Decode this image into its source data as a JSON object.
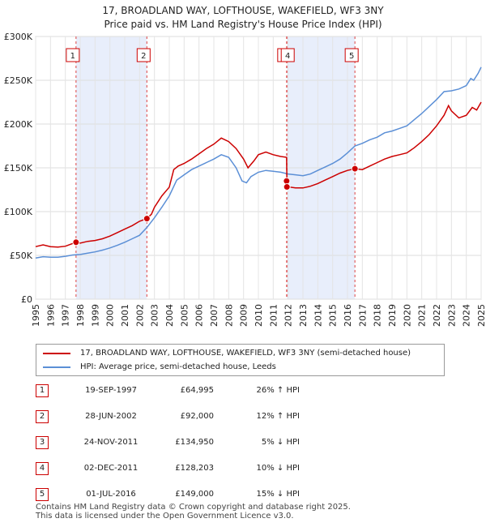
{
  "title": {
    "line1": "17, BROADLAND WAY, LOFTHOUSE, WAKEFIELD, WF3 3NY",
    "line2": "Price paid vs. HM Land Registry's House Price Index (HPI)"
  },
  "colors": {
    "property": "#cc0000",
    "hpi": "#5b8fd6",
    "shade": "#e8eefb"
  },
  "chart_data": {
    "type": "line",
    "ylim": [
      0,
      300000
    ],
    "xlim": [
      1995,
      2025
    ],
    "y_ticks": [
      {
        "value": 0,
        "label": "£0"
      },
      {
        "value": 50000,
        "label": "£50K"
      },
      {
        "value": 100000,
        "label": "£100K"
      },
      {
        "value": 150000,
        "label": "£150K"
      },
      {
        "value": 200000,
        "label": "£200K"
      },
      {
        "value": 250000,
        "label": "£250K"
      },
      {
        "value": 300000,
        "label": "£300K"
      }
    ],
    "x_ticks": [
      "1995",
      "1996",
      "1997",
      "1998",
      "1999",
      "2000",
      "2001",
      "2002",
      "2003",
      "2004",
      "2005",
      "2006",
      "2007",
      "2008",
      "2009",
      "2010",
      "2011",
      "2012",
      "2013",
      "2014",
      "2015",
      "2016",
      "2017",
      "2018",
      "2019",
      "2020",
      "2021",
      "2022",
      "2023",
      "2024",
      "2025"
    ],
    "grid": true,
    "shaded_spans": [
      [
        1997.72,
        2002.49
      ],
      [
        2011.92,
        2016.5
      ]
    ],
    "series": [
      {
        "name": "17, BROADLAND WAY, LOFTHOUSE, WAKEFIELD, WF3 3NY (semi-detached house)",
        "color": "#cc0000",
        "points": [
          [
            1995,
            60000
          ],
          [
            1995.5,
            62000
          ],
          [
            1996,
            60000
          ],
          [
            1996.5,
            59500
          ],
          [
            1997,
            60500
          ],
          [
            1997.72,
            64995
          ],
          [
            1998,
            64000
          ],
          [
            1998.5,
            66000
          ],
          [
            1999,
            67000
          ],
          [
            1999.5,
            69000
          ],
          [
            2000,
            72000
          ],
          [
            2000.5,
            76000
          ],
          [
            2001,
            80000
          ],
          [
            2001.5,
            84000
          ],
          [
            2002,
            89000
          ],
          [
            2002.49,
            92000
          ],
          [
            2002.8,
            97000
          ],
          [
            2003,
            105000
          ],
          [
            2003.5,
            118000
          ],
          [
            2004,
            128000
          ],
          [
            2004.3,
            148000
          ],
          [
            2004.6,
            152000
          ],
          [
            2005,
            155000
          ],
          [
            2005.5,
            160000
          ],
          [
            2006,
            166000
          ],
          [
            2006.5,
            172000
          ],
          [
            2007,
            177000
          ],
          [
            2007.5,
            184000
          ],
          [
            2008,
            180000
          ],
          [
            2008.5,
            172000
          ],
          [
            2009,
            160000
          ],
          [
            2009.3,
            150000
          ],
          [
            2009.7,
            158000
          ],
          [
            2010,
            165000
          ],
          [
            2010.5,
            168000
          ],
          [
            2011,
            165000
          ],
          [
            2011.5,
            163000
          ],
          [
            2011.9,
            162000
          ],
          [
            2011.92,
            134950
          ],
          [
            2012.0,
            128203
          ],
          [
            2012.5,
            127000
          ],
          [
            2013,
            127000
          ],
          [
            2013.5,
            129000
          ],
          [
            2014,
            132000
          ],
          [
            2014.5,
            136000
          ],
          [
            2015,
            140000
          ],
          [
            2015.5,
            144000
          ],
          [
            2016,
            147000
          ],
          [
            2016.5,
            149000
          ],
          [
            2017,
            148000
          ],
          [
            2017.5,
            152000
          ],
          [
            2018,
            156000
          ],
          [
            2018.5,
            160000
          ],
          [
            2019,
            163000
          ],
          [
            2019.5,
            165000
          ],
          [
            2020,
            167000
          ],
          [
            2020.5,
            173000
          ],
          [
            2021,
            180000
          ],
          [
            2021.5,
            188000
          ],
          [
            2022,
            198000
          ],
          [
            2022.5,
            210000
          ],
          [
            2022.8,
            221000
          ],
          [
            2023,
            215000
          ],
          [
            2023.5,
            207000
          ],
          [
            2024,
            210000
          ],
          [
            2024.4,
            219000
          ],
          [
            2024.7,
            216000
          ],
          [
            2025,
            225000
          ]
        ]
      },
      {
        "name": "HPI: Average price, semi-detached house, Leeds",
        "color": "#5b8fd6",
        "points": [
          [
            1995,
            47000
          ],
          [
            1995.5,
            48500
          ],
          [
            1996,
            48000
          ],
          [
            1996.5,
            48000
          ],
          [
            1997,
            49000
          ],
          [
            1997.5,
            50500
          ],
          [
            1998,
            51000
          ],
          [
            1998.5,
            52500
          ],
          [
            1999,
            54000
          ],
          [
            1999.5,
            56000
          ],
          [
            2000,
            58500
          ],
          [
            2000.5,
            61500
          ],
          [
            2001,
            65000
          ],
          [
            2001.5,
            69000
          ],
          [
            2002,
            73000
          ],
          [
            2002.5,
            82000
          ],
          [
            2003,
            93000
          ],
          [
            2003.5,
            105000
          ],
          [
            2004,
            118000
          ],
          [
            2004.5,
            136000
          ],
          [
            2005,
            142000
          ],
          [
            2005.5,
            148000
          ],
          [
            2006,
            152000
          ],
          [
            2006.5,
            156000
          ],
          [
            2007,
            160000
          ],
          [
            2007.5,
            165000
          ],
          [
            2008,
            162000
          ],
          [
            2008.5,
            150000
          ],
          [
            2008.9,
            135000
          ],
          [
            2009.2,
            133000
          ],
          [
            2009.5,
            140000
          ],
          [
            2010,
            145000
          ],
          [
            2010.5,
            147000
          ],
          [
            2011,
            146000
          ],
          [
            2011.5,
            145000
          ],
          [
            2012,
            143000
          ],
          [
            2012.5,
            142000
          ],
          [
            2013,
            141000
          ],
          [
            2013.5,
            143000
          ],
          [
            2014,
            147000
          ],
          [
            2014.5,
            151000
          ],
          [
            2015,
            155000
          ],
          [
            2015.5,
            160000
          ],
          [
            2016,
            167000
          ],
          [
            2016.5,
            175000
          ],
          [
            2017,
            178000
          ],
          [
            2017.5,
            182000
          ],
          [
            2018,
            185000
          ],
          [
            2018.5,
            190000
          ],
          [
            2019,
            192000
          ],
          [
            2019.5,
            195000
          ],
          [
            2020,
            198000
          ],
          [
            2020.5,
            205000
          ],
          [
            2021,
            212000
          ],
          [
            2021.5,
            220000
          ],
          [
            2022,
            228000
          ],
          [
            2022.5,
            237000
          ],
          [
            2023,
            238000
          ],
          [
            2023.5,
            240000
          ],
          [
            2024,
            244000
          ],
          [
            2024.3,
            252000
          ],
          [
            2024.5,
            250000
          ],
          [
            2024.8,
            258000
          ],
          [
            2025,
            265000
          ]
        ]
      }
    ],
    "sale_markers": [
      {
        "x": 1997.72,
        "y": 64995,
        "label": "1"
      },
      {
        "x": 2002.49,
        "y": 92000,
        "label": "2"
      },
      {
        "x": 2011.9,
        "y": 134950,
        "label": "3"
      },
      {
        "x": 2011.92,
        "y": 128203,
        "label": "4"
      },
      {
        "x": 2016.5,
        "y": 149000,
        "label": "5"
      }
    ],
    "marker_boxes": [
      {
        "x": 1997.72,
        "label": "1"
      },
      {
        "x": 2002.49,
        "label": "2"
      },
      {
        "x": 2011.9,
        "label": "3"
      },
      {
        "x": 2011.92,
        "label": "4"
      },
      {
        "x": 2016.5,
        "label": "5"
      }
    ]
  },
  "legend": {
    "items": [
      {
        "label": "17, BROADLAND WAY, LOFTHOUSE, WAKEFIELD, WF3 3NY (semi-detached house)",
        "color": "#cc0000"
      },
      {
        "label": "HPI: Average price, semi-detached house, Leeds",
        "color": "#5b8fd6"
      }
    ]
  },
  "sales": [
    {
      "num": "1",
      "date": "19-SEP-1997",
      "price": "£64,995",
      "hpi": "26% ↑ HPI"
    },
    {
      "num": "2",
      "date": "28-JUN-2002",
      "price": "£92,000",
      "hpi": "12% ↑ HPI"
    },
    {
      "num": "3",
      "date": "24-NOV-2011",
      "price": "£134,950",
      "hpi": "5% ↓ HPI"
    },
    {
      "num": "4",
      "date": "02-DEC-2011",
      "price": "£128,203",
      "hpi": "10% ↓ HPI"
    },
    {
      "num": "5",
      "date": "01-JUL-2016",
      "price": "£149,000",
      "hpi": "15% ↓ HPI"
    }
  ],
  "footer": {
    "line1": "Contains HM Land Registry data © Crown copyright and database right 2025.",
    "line2": "This data is licensed under the Open Government Licence v3.0."
  }
}
